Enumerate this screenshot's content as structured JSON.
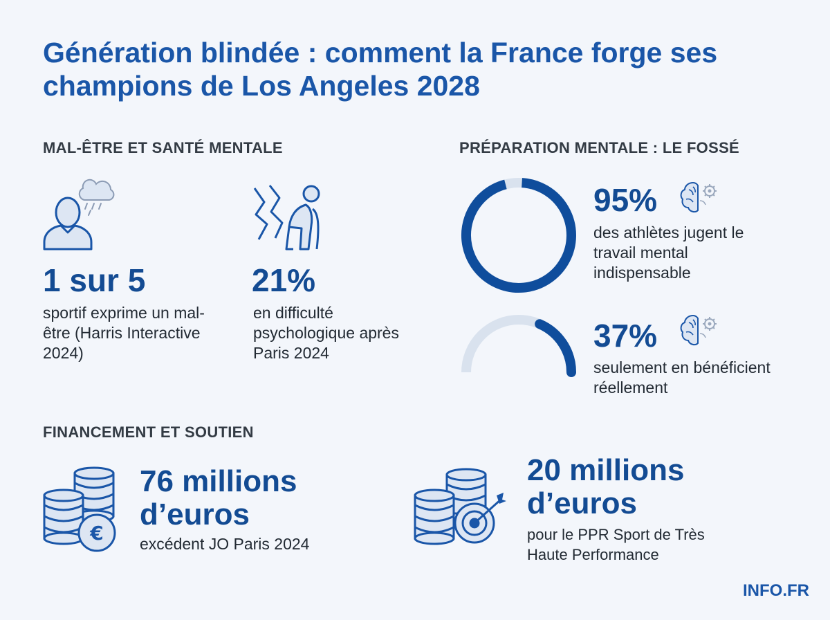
{
  "title": "Génération blindée : comment la France forge ses champions de Los Angeles 2028",
  "sections": {
    "wellbeing": {
      "heading": "MAL-ÊTRE ET SANTÉ MENTALE",
      "stats": [
        {
          "value": "1 sur 5",
          "text": "sportif exprime un mal-être (Harris Interactive 2024)",
          "icon": "sad-person-rain-cloud-icon"
        },
        {
          "value": "21%",
          "text": "en difficulté psychologique après Paris 2024",
          "icon": "stressed-athlete-icon"
        }
      ]
    },
    "preparation": {
      "heading": "PRÉPARATION MENTALE : LE FOSSÉ",
      "stats": [
        {
          "value": "95%",
          "percent": 95,
          "text": "des athlètes jugent le travail mental indispensable",
          "icon": "brain-gear-icon"
        },
        {
          "value": "37%",
          "percent": 37,
          "text": "seulement en bénéficient réellement",
          "icon": "brain-gear-icon"
        }
      ],
      "colors": {
        "fill": "#0f4d9c",
        "track": "#d9e2ee"
      }
    },
    "funding": {
      "heading": "FINANCEMENT ET SOUTIEN",
      "stats": [
        {
          "value": "76 millions d’euros",
          "text": "excédent JO Paris 2024",
          "icon": "coin-stack-euro-icon"
        },
        {
          "value": "20 millions d’euros",
          "text": "pour le PPR Sport de Très Haute Performance",
          "icon": "coin-stack-target-icon"
        }
      ]
    }
  },
  "brand": "INFO.FR",
  "colors": {
    "primary": "#1a56a8",
    "dark": "#134b93",
    "icon_fill": "#dde6f3"
  }
}
